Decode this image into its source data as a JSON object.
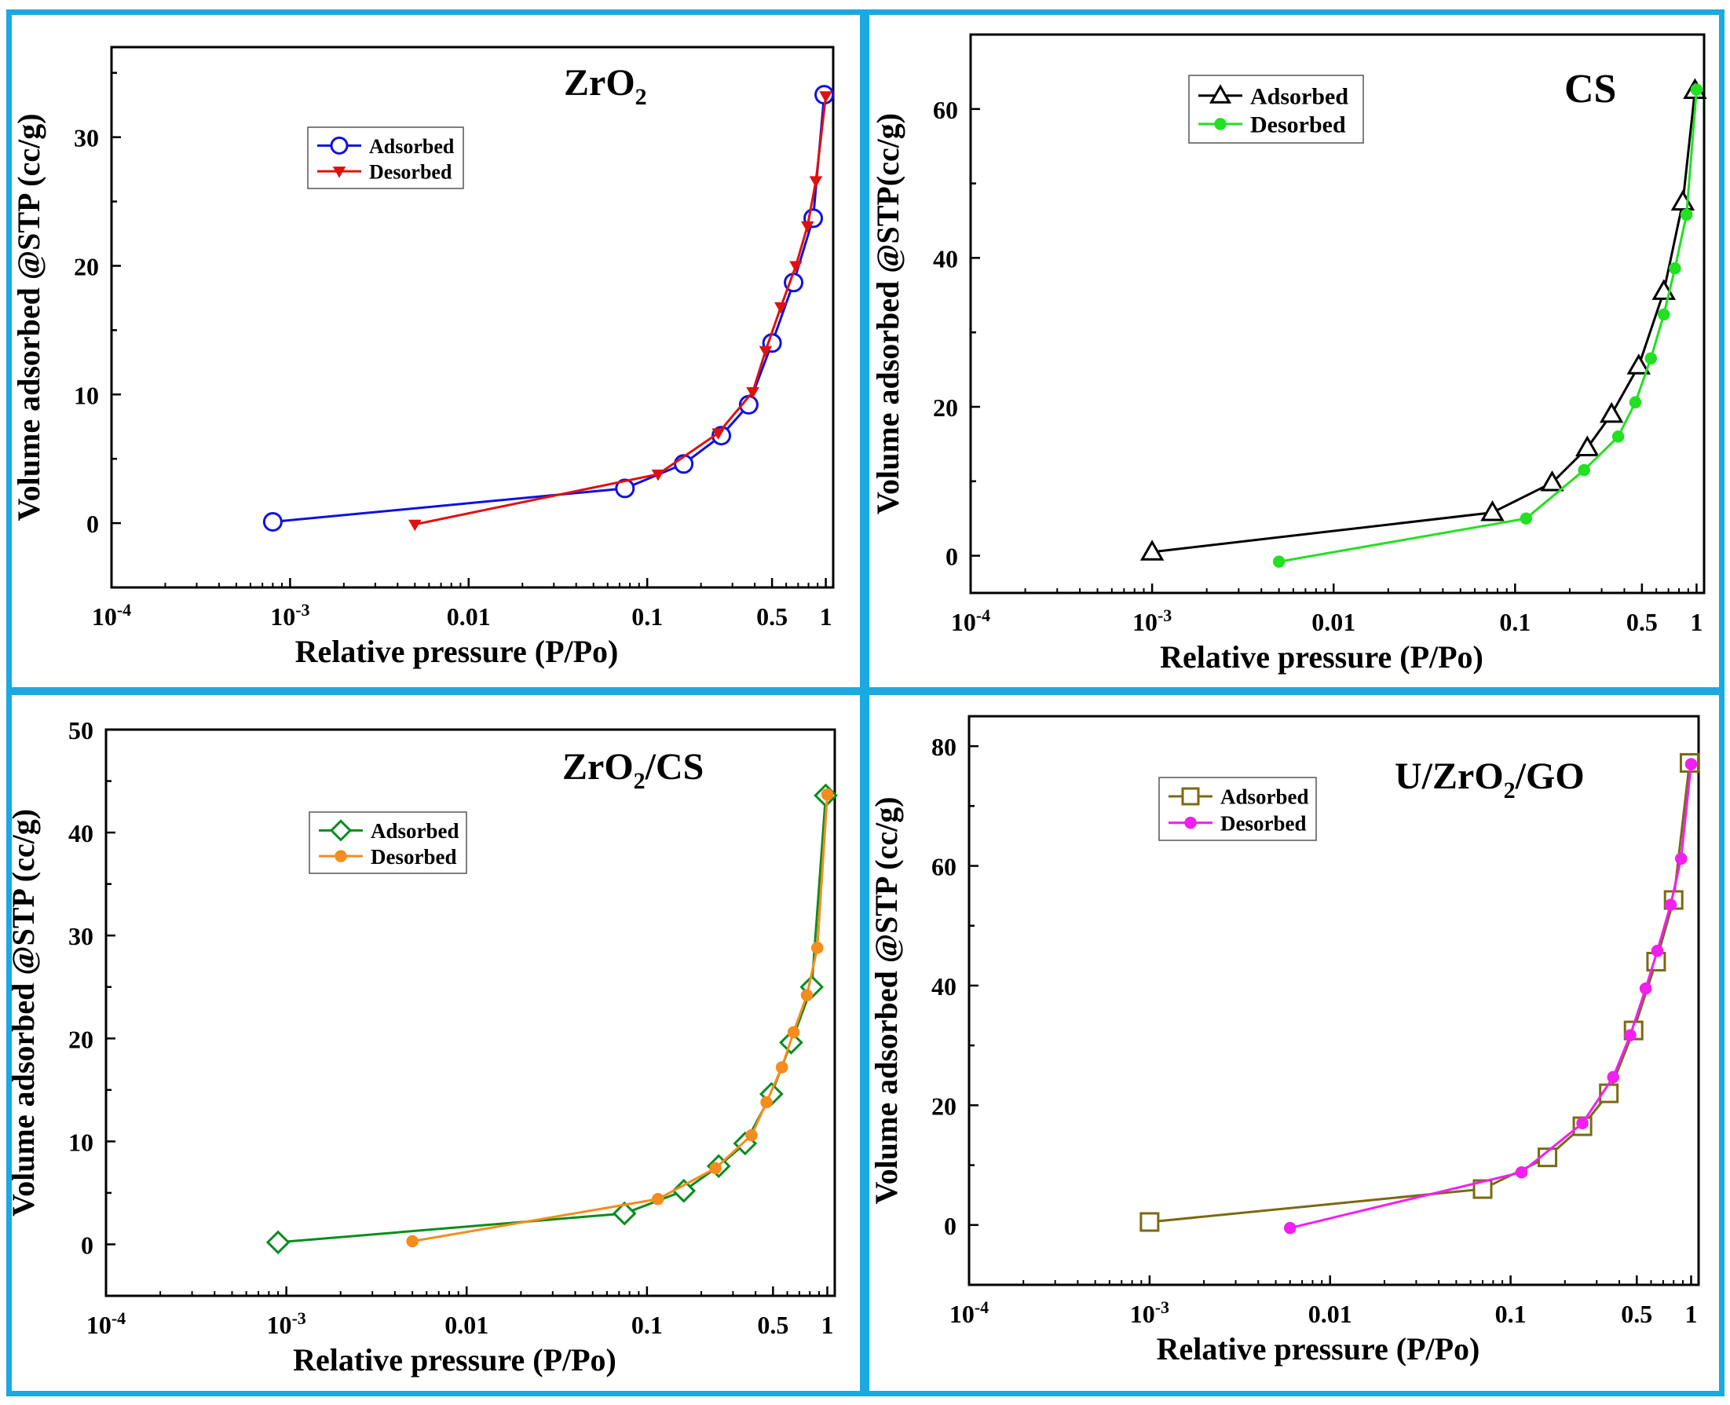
{
  "frame_color": "#1aa9e1",
  "chart_data": [
    {
      "type": "line",
      "scale": "log-x",
      "title": "ZrO",
      "title_sub": "2",
      "title_tail": "",
      "xlabel": "Relative pressure (P/Po)",
      "ylabel": "Volume adsorbed @STP (cc/g)",
      "xlim": [
        0.0001,
        1.1
      ],
      "ylim": [
        -5,
        37
      ],
      "yticks": [
        0,
        10,
        20,
        30
      ],
      "xticks": [
        {
          "value": 0.0001,
          "label": "10",
          "sup": "-4"
        },
        {
          "value": 0.001,
          "label": "10",
          "sup": "-3"
        },
        {
          "value": 0.01,
          "label": "0.01",
          "sup": ""
        },
        {
          "value": 0.1,
          "label": "0.1",
          "sup": ""
        },
        {
          "value": 0.5,
          "label": "0.5",
          "sup": ""
        },
        {
          "value": 1,
          "label": "1",
          "sup": ""
        }
      ],
      "legend_position": "upper-left",
      "series": [
        {
          "name": "Adsorbed",
          "color": "#1010e0",
          "marker": "circle",
          "filled": false,
          "x": [
            0.0008,
            0.075,
            0.16,
            0.26,
            0.37,
            0.5,
            0.66,
            0.85,
            0.98
          ],
          "y": [
            0.1,
            2.7,
            4.6,
            6.8,
            9.2,
            14.0,
            18.7,
            23.7,
            33.3
          ]
        },
        {
          "name": "Desorbed",
          "color": "#e01010",
          "marker": "triangle-down",
          "filled": true,
          "x": [
            0.005,
            0.115,
            0.25,
            0.39,
            0.46,
            0.56,
            0.68,
            0.79,
            0.88,
            1.0
          ],
          "y": [
            -0.1,
            3.8,
            7.0,
            10.2,
            13.4,
            16.8,
            20.0,
            23.1,
            26.6,
            33.2
          ]
        }
      ]
    },
    {
      "type": "line",
      "scale": "log-x",
      "title": "CS",
      "title_sub": "",
      "title_tail": "",
      "xlabel": "Relative pressure (P/Po)",
      "ylabel": "Volume adsorbed @STP(cc/g)",
      "xlim": [
        0.0001,
        1.1
      ],
      "ylim": [
        -5,
        70
      ],
      "yticks": [
        0,
        20,
        40,
        60
      ],
      "xticks": [
        {
          "value": 0.0001,
          "label": "10",
          "sup": "-4"
        },
        {
          "value": 0.001,
          "label": "10",
          "sup": "-3"
        },
        {
          "value": 0.01,
          "label": "0.01",
          "sup": ""
        },
        {
          "value": 0.1,
          "label": "0.1",
          "sup": ""
        },
        {
          "value": 0.5,
          "label": "0.5",
          "sup": ""
        },
        {
          "value": 1,
          "label": "1",
          "sup": ""
        }
      ],
      "legend_position": "upper-left",
      "series": [
        {
          "name": "Adsorbed",
          "color": "#000000",
          "marker": "triangle-up",
          "filled": false,
          "x": [
            0.001,
            0.075,
            0.16,
            0.25,
            0.34,
            0.48,
            0.66,
            0.84,
            0.98
          ],
          "y": [
            0.5,
            5.8,
            9.8,
            14.5,
            19.0,
            25.5,
            35.5,
            47.5,
            62.5
          ]
        },
        {
          "name": "Desorbed",
          "color": "#22e022",
          "marker": "circle",
          "filled": true,
          "x": [
            0.005,
            0.115,
            0.24,
            0.37,
            0.46,
            0.56,
            0.66,
            0.76,
            0.88,
            1.0
          ],
          "y": [
            -0.8,
            5.0,
            11.5,
            16.0,
            20.6,
            26.5,
            32.4,
            38.6,
            45.8,
            62.6
          ]
        }
      ]
    },
    {
      "type": "line",
      "scale": "log-x",
      "title": "ZrO",
      "title_sub": "2",
      "title_tail": "/CS",
      "xlabel": "Relative pressure (P/Po)",
      "ylabel": "Volume adsorbed @STP (cc/g)",
      "xlim": [
        0.0001,
        1.1
      ],
      "ylim": [
        -5,
        50
      ],
      "yticks": [
        0,
        10,
        20,
        30,
        40,
        50
      ],
      "xticks": [
        {
          "value": 0.0001,
          "label": "10",
          "sup": "-4"
        },
        {
          "value": 0.001,
          "label": "10",
          "sup": "-3"
        },
        {
          "value": 0.01,
          "label": "0.01",
          "sup": ""
        },
        {
          "value": 0.1,
          "label": "0.1",
          "sup": ""
        },
        {
          "value": 0.5,
          "label": "0.5",
          "sup": ""
        },
        {
          "value": 1,
          "label": "1",
          "sup": ""
        }
      ],
      "legend_position": "upper-left",
      "series": [
        {
          "name": "Adsorbed",
          "color": "#0a8c1e",
          "marker": "diamond",
          "filled": false,
          "x": [
            0.0009,
            0.075,
            0.16,
            0.25,
            0.35,
            0.49,
            0.63,
            0.82,
            0.98
          ],
          "y": [
            0.2,
            3.0,
            5.2,
            7.6,
            9.8,
            14.6,
            19.6,
            25.0,
            43.6
          ]
        },
        {
          "name": "Desorbed",
          "color": "#f58c1e",
          "marker": "circle",
          "filled": true,
          "x": [
            0.005,
            0.115,
            0.24,
            0.38,
            0.46,
            0.56,
            0.65,
            0.77,
            0.88,
            1.0
          ],
          "y": [
            0.3,
            4.4,
            7.4,
            10.6,
            13.8,
            17.2,
            20.6,
            24.2,
            28.8,
            43.7
          ]
        }
      ]
    },
    {
      "type": "line",
      "scale": "log-x",
      "title": "U/ZrO",
      "title_sub": "2",
      "title_tail": "/GO",
      "xlabel": "Relative pressure (P/Po)",
      "ylabel": "Volume adsorbed @STP (cc/g)",
      "xlim": [
        0.0001,
        1.1
      ],
      "ylim": [
        -10,
        85
      ],
      "yticks": [
        0,
        20,
        40,
        60,
        80
      ],
      "xticks": [
        {
          "value": 0.0001,
          "label": "10",
          "sup": "-4"
        },
        {
          "value": 0.001,
          "label": "10",
          "sup": "-3"
        },
        {
          "value": 0.01,
          "label": "0.01",
          "sup": ""
        },
        {
          "value": 0.1,
          "label": "0.1",
          "sup": ""
        },
        {
          "value": 0.5,
          "label": "0.5",
          "sup": ""
        },
        {
          "value": 1,
          "label": "1",
          "sup": ""
        }
      ],
      "legend_position": "upper-left",
      "series": [
        {
          "name": "Adsorbed",
          "color": "#7a6a12",
          "marker": "square",
          "filled": false,
          "x": [
            0.001,
            0.07,
            0.16,
            0.25,
            0.35,
            0.48,
            0.64,
            0.8,
            0.98
          ],
          "y": [
            0.5,
            6.0,
            11.3,
            16.5,
            22.0,
            32.5,
            44.0,
            54.3,
            77.2
          ]
        },
        {
          "name": "Desorbed",
          "color": "#f21ff0",
          "marker": "circle",
          "filled": true,
          "x": [
            0.006,
            0.115,
            0.25,
            0.37,
            0.46,
            0.56,
            0.65,
            0.77,
            0.88,
            1.0
          ],
          "y": [
            -0.5,
            8.8,
            17.0,
            24.7,
            31.7,
            39.5,
            45.8,
            53.5,
            61.2,
            77.0
          ]
        }
      ]
    }
  ]
}
